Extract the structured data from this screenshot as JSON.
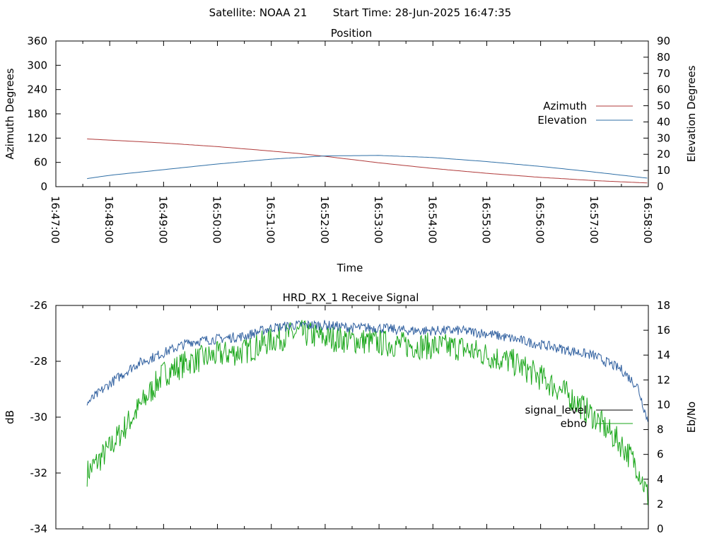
{
  "header": {
    "satellite": "Satellite: NOAA 21",
    "start_time": "Start Time: 28-Jun-2025 16:47:35"
  },
  "colors": {
    "azimuth": "#b03a3a",
    "elevation": "#2f6fa6",
    "signal_level": "#2f5f9f",
    "ebno": "#19a619",
    "axes": "#000000"
  },
  "chart_data": [
    {
      "type": "line",
      "title": "Position",
      "xlabel": "Time",
      "ylabel": "Azimuth Degrees",
      "y2label": "Elevation Degrees",
      "xlim_minutes": [
        0,
        11
      ],
      "x_tick_labels": [
        "16:47:00",
        "16:48:00",
        "16:49:00",
        "16:50:00",
        "16:51:00",
        "16:52:00",
        "16:53:00",
        "16:54:00",
        "16:55:00",
        "16:56:00",
        "16:57:00",
        "16:58:00"
      ],
      "ylim": [
        0,
        360
      ],
      "y_ticks": [
        0,
        60,
        120,
        180,
        240,
        300,
        360
      ],
      "y2lim": [
        0,
        90
      ],
      "y2_ticks": [
        0,
        10,
        20,
        30,
        40,
        50,
        60,
        70,
        80,
        90
      ],
      "grid": false,
      "legend_position": "right",
      "series": [
        {
          "name": "Azimuth",
          "axis": "left",
          "x": [
            "16:47:35",
            "16:48:00",
            "16:49:00",
            "16:50:00",
            "16:51:00",
            "16:51:30",
            "16:52:00",
            "16:53:00",
            "16:54:00",
            "16:55:00",
            "16:56:00",
            "16:57:00",
            "16:58:00"
          ],
          "x_min": [
            0.58,
            1,
            2,
            3,
            4,
            4.5,
            5,
            6,
            7,
            8,
            9,
            10,
            11
          ],
          "values": [
            118,
            115,
            108,
            99,
            88,
            82,
            75,
            59,
            45,
            33,
            23,
            15,
            9
          ]
        },
        {
          "name": "Elevation",
          "axis": "right",
          "x": [
            "16:47:35",
            "16:48:00",
            "16:49:00",
            "16:50:00",
            "16:51:00",
            "16:52:00",
            "16:53:00",
            "16:54:00",
            "16:55:00",
            "16:56:00",
            "16:57:00",
            "16:58:00"
          ],
          "x_min": [
            0.58,
            1,
            2,
            3,
            4,
            5,
            6,
            7,
            8,
            9,
            10,
            11
          ],
          "values": [
            5,
            7,
            10.5,
            14,
            17,
            19,
            19.3,
            18,
            15.5,
            12.5,
            9,
            5.2
          ]
        }
      ]
    },
    {
      "type": "line",
      "title": "HRD_RX_1 Receive Signal",
      "xlabel": "",
      "ylabel": "dB",
      "y2label": "Eb/No",
      "xlim_minutes": [
        0,
        11
      ],
      "ylim": [
        -34,
        -26
      ],
      "y_ticks": [
        -34,
        -32,
        -30,
        -28,
        -26
      ],
      "y2lim": [
        0,
        18
      ],
      "y2_ticks": [
        0,
        2,
        4,
        6,
        8,
        10,
        12,
        14,
        16,
        18
      ],
      "grid": false,
      "legend_position": "right",
      "series": [
        {
          "name": "signal_level",
          "axis": "left",
          "x_min": [
            0.58,
            1,
            1.5,
            2,
            2.5,
            3,
            3.5,
            4,
            4.5,
            5,
            5.5,
            6,
            6.5,
            7,
            7.5,
            8,
            8.5,
            9,
            9.5,
            10,
            10.5,
            10.8,
            11
          ],
          "values": [
            -29.5,
            -28.8,
            -28.1,
            -27.7,
            -27.3,
            -27.2,
            -27.1,
            -26.8,
            -26.7,
            -26.7,
            -26.8,
            -26.8,
            -26.9,
            -26.9,
            -26.9,
            -27.0,
            -27.2,
            -27.4,
            -27.6,
            -27.8,
            -28.3,
            -28.9,
            -30.2
          ],
          "noise": 0.18
        },
        {
          "name": "ebno",
          "axis": "right",
          "x_min": [
            0.58,
            1,
            1.5,
            2,
            2.5,
            3,
            3.5,
            4,
            4.5,
            5,
            5.5,
            6,
            6.5,
            7,
            7.5,
            8,
            8.5,
            9,
            9.5,
            10,
            10.5,
            10.8,
            11
          ],
          "values": [
            4.5,
            6.5,
            9.5,
            12.5,
            13.5,
            14.0,
            14.3,
            15.2,
            15.8,
            15.4,
            15.2,
            15.0,
            14.8,
            14.7,
            14.6,
            14.0,
            13.4,
            12.2,
            10.8,
            9.0,
            6.8,
            5.0,
            2.5
          ],
          "noise": 1.1
        }
      ]
    }
  ]
}
